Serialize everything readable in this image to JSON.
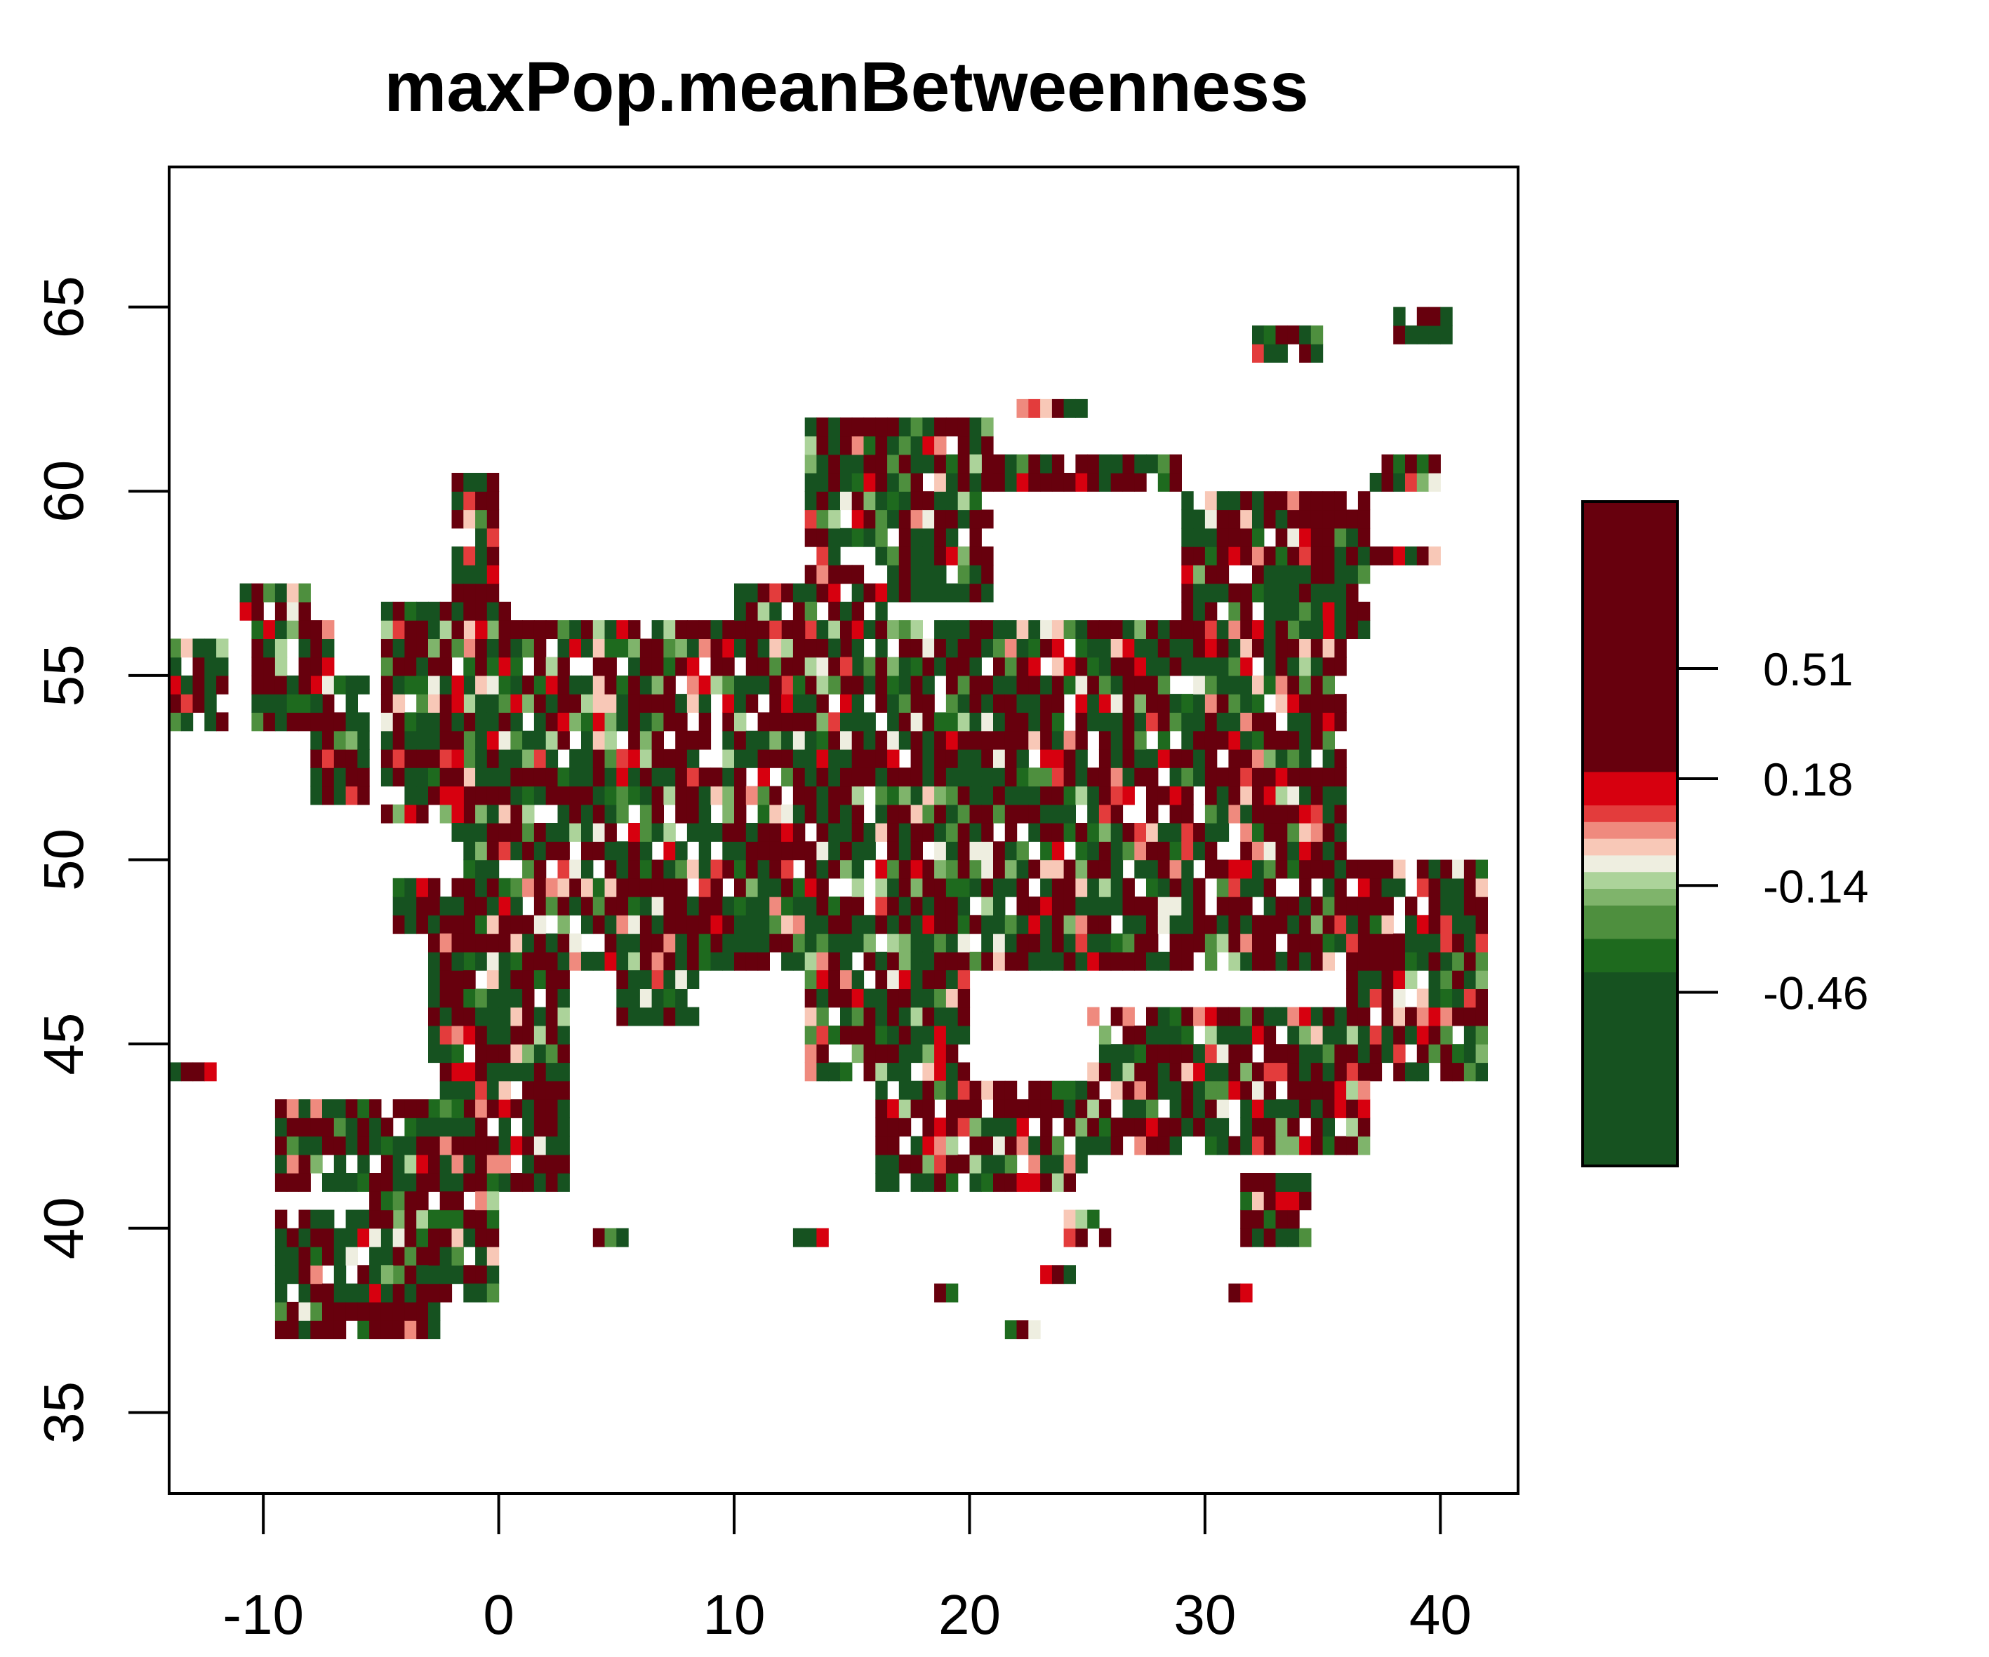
{
  "chart_data": {
    "type": "heatmap",
    "title": "maxPop.meanBetweenness",
    "xlabel": "",
    "ylabel": "",
    "xlim": [
      -14,
      43.3
    ],
    "ylim": [
      32.8,
      68.8
    ],
    "xticks": [
      "-10",
      "0",
      "10",
      "20",
      "30",
      "40"
    ],
    "yticks": [
      "35",
      "40",
      "45",
      "50",
      "55",
      "60",
      "65"
    ],
    "grid": false,
    "legend_position": "right",
    "cell_resolution_deg": [
      0.5,
      0.5
    ],
    "colorbar": {
      "ticks": [
        "0.51",
        "0.18",
        "-0.14",
        "-0.46"
      ],
      "range": [
        -0.98,
        1.01
      ],
      "bands": [
        {
          "from": 0.2,
          "to": 1.01,
          "color": "#67000d"
        },
        {
          "from": 0.1,
          "to": 0.2,
          "color": "#d7000f"
        },
        {
          "from": 0.05,
          "to": 0.1,
          "color": "#e33c3c"
        },
        {
          "from": 0.0,
          "to": 0.05,
          "color": "#ef8a7e"
        },
        {
          "from": -0.05,
          "to": 0.0,
          "color": "#f8c8b7"
        },
        {
          "from": -0.1,
          "to": -0.05,
          "color": "#eeeee0"
        },
        {
          "from": -0.15,
          "to": -0.1,
          "color": "#acd39a"
        },
        {
          "from": -0.2,
          "to": -0.15,
          "color": "#7fb46b"
        },
        {
          "from": -0.3,
          "to": -0.2,
          "color": "#4e8f3e"
        },
        {
          "from": -0.4,
          "to": -0.3,
          "color": "#1e6a1e"
        },
        {
          "from": -0.98,
          "to": -0.4,
          "color": "#165220"
        }
      ]
    },
    "regions": [
      {
        "lon": [
          -1.5,
          36
        ],
        "lat": [
          47,
          56.5
        ]
      },
      {
        "lon": [
          36,
          42
        ],
        "lat": [
          44,
          50
        ]
      },
      {
        "lon": [
          -4.5,
          -0.5
        ],
        "lat": [
          48,
          49.5
        ]
      },
      {
        "lon": [
          5,
          8.5
        ],
        "lat": [
          45.5,
          48
        ]
      },
      {
        "lon": [
          -3,
          3
        ],
        "lat": [
          43,
          48
        ]
      },
      {
        "lon": [
          -5,
          1
        ],
        "lat": [
          51,
          57
        ]
      },
      {
        "lon": [
          -2,
          1.5
        ],
        "lat": [
          50.5,
          53.5
        ]
      },
      {
        "lon": [
          -8,
          -5.5
        ],
        "lat": [
          51.5,
          55
        ]
      },
      {
        "lon": [
          -10.5,
          -7
        ],
        "lat": [
          53.5,
          56.5
        ]
      },
      {
        "lon": [
          -2,
          0
        ],
        "lat": [
          57,
          60.5
        ]
      },
      {
        "lon": [
          13,
          21
        ],
        "lat": [
          57,
          62
        ]
      },
      {
        "lon": [
          20,
          29
        ],
        "lat": [
          60,
          61
        ]
      },
      {
        "lon": [
          29,
          37
        ],
        "lat": [
          56,
          60
        ]
      },
      {
        "lon": [
          10,
          16.5
        ],
        "lat": [
          54.5,
          57.5
        ]
      },
      {
        "lon": [
          13,
          20
        ],
        "lat": [
          44,
          47
        ]
      },
      {
        "lon": [
          16,
          25
        ],
        "lat": [
          41,
          44
        ]
      },
      {
        "lon": [
          25,
          37
        ],
        "lat": [
          42,
          46
        ]
      },
      {
        "lon": [
          -9.5,
          3
        ],
        "lat": [
          41,
          43.5
        ]
      },
      {
        "lon": [
          -9.5,
          -2
        ],
        "lat": [
          37,
          40.5
        ]
      },
      {
        "lon": [
          -5.5,
          0
        ],
        "lat": [
          38.5,
          41
        ]
      },
      {
        "lon": [
          37,
          40
        ],
        "lat": [
          60,
          61
        ]
      },
      {
        "lon": [
          32,
          35
        ],
        "lat": [
          63.5,
          64.5
        ]
      },
      {
        "lon": [
          38,
          40.5
        ],
        "lat": [
          64,
          65
        ]
      },
      {
        "lon": [
          -14,
          -11.5
        ],
        "lat": [
          53.5,
          56
        ]
      },
      {
        "lon": [
          -11,
          -8
        ],
        "lat": [
          56.5,
          57.5
        ]
      },
      {
        "lon": [
          -14,
          -12
        ],
        "lat": [
          44,
          44.5
        ]
      },
      {
        "lon": [
          31.5,
          34.5
        ],
        "lat": [
          39.5,
          41.5
        ]
      },
      {
        "lon": [
          24,
          26
        ],
        "lat": [
          39.5,
          40.5
        ]
      },
      {
        "lon": [
          23,
          25
        ],
        "lat": [
          38.5,
          39
        ]
      },
      {
        "lon": [
          -1.5,
          0
        ],
        "lat": [
          38,
          38.5
        ]
      },
      {
        "lon": [
          -1,
          0.5
        ],
        "lat": [
          39.5,
          40
        ]
      },
      {
        "lon": [
          4,
          5.5
        ],
        "lat": [
          39.5,
          40
        ]
      },
      {
        "lon": [
          12.5,
          14
        ],
        "lat": [
          39.5,
          40
        ]
      },
      {
        "lon": [
          18.5,
          19.5
        ],
        "lat": [
          38,
          38.5
        ]
      },
      {
        "lon": [
          21.5,
          23
        ],
        "lat": [
          37,
          37.5
        ]
      },
      {
        "lon": [
          31,
          32
        ],
        "lat": [
          38,
          38.5
        ]
      },
      {
        "lon": [
          27,
          28
        ],
        "lat": [
          60.5,
          61
        ]
      },
      {
        "lon": [
          22,
          25
        ],
        "lat": [
          62,
          62.5
        ]
      },
      {
        "lon": [
          36.5,
          40
        ],
        "lat": [
          58,
          58.5
        ]
      },
      {
        "lon": [
          38,
          40
        ],
        "lat": [
          60.5,
          61
        ]
      }
    ]
  }
}
